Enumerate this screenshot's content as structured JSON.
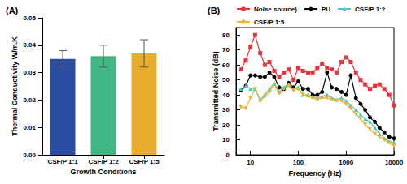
{
  "chart_data": [
    {
      "type": "bar",
      "title": "(A)",
      "x_label": "Growth Conditions",
      "y_label": "Thermal Conductivity W/m.K",
      "categories": [
        "CSF/P 1:1",
        "CSF/P 1:2",
        "CSF/P 1:5"
      ],
      "values": [
        0.035,
        0.036,
        0.037
      ],
      "errors": [
        0.003,
        0.004,
        0.005
      ],
      "colors": [
        "#2b4ea2",
        "#41b883",
        "#e6ad2a"
      ],
      "ylim": [
        0,
        0.05
      ],
      "yticks": [
        {
          "value": 0,
          "label": "0.00"
        },
        {
          "value": 0.01,
          "label": "0.01"
        },
        {
          "value": 0.02,
          "label": "0.02"
        },
        {
          "value": 0.03,
          "label": "0.03"
        },
        {
          "value": 0.04,
          "label": "0.04"
        },
        {
          "value": 0.05,
          "label": "0.05"
        }
      ],
      "grid": false
    },
    {
      "type": "line",
      "title": "(B)",
      "x_label": "Frequency (Hz)",
      "y_label": "Transmitted Noise (dB)",
      "log": "x",
      "x": [
        6.3,
        8,
        10,
        12.5,
        16,
        20,
        25,
        31.5,
        40,
        50,
        63,
        80,
        100,
        125,
        160,
        200,
        250,
        315,
        400,
        500,
        630,
        800,
        1000,
        1250,
        1600,
        2000,
        2500,
        3150,
        4000,
        5000,
        6300,
        8000,
        10000
      ],
      "series": [
        {
          "name": "Noise source)",
          "color": "#e8333a",
          "marker": "square",
          "values": [
            57,
            63,
            72,
            80,
            68,
            60,
            62,
            56,
            52,
            55,
            57,
            50,
            58,
            56,
            55,
            55,
            58,
            61,
            58,
            57,
            55,
            62,
            65,
            62,
            55,
            50,
            47,
            44,
            46,
            47,
            44,
            40,
            33
          ]
        },
        {
          "name": "PU",
          "color": "#000000",
          "marker": "circle",
          "values": [
            43,
            46,
            53,
            53,
            52,
            52,
            55,
            52,
            45,
            44,
            48,
            45,
            49,
            44,
            44,
            40,
            40,
            42,
            55,
            45,
            44,
            42,
            40,
            53,
            38,
            34,
            30,
            25,
            22,
            18,
            15,
            12,
            11
          ]
        },
        {
          "name": "CSF/P 1:2",
          "color": "#4ec9c0",
          "marker": "triangle",
          "values": [
            44,
            46,
            44,
            44,
            37,
            40,
            44,
            48,
            42,
            45,
            47,
            44,
            45,
            40,
            40,
            39,
            38,
            39,
            40,
            38,
            37,
            38,
            36,
            33,
            30,
            27,
            24,
            22,
            18,
            14,
            11,
            9,
            8
          ]
        },
        {
          "name": "CSF/P 1:5",
          "color": "#f0b030",
          "marker": "triangle-down",
          "values": [
            32,
            31,
            38,
            44,
            36,
            39,
            42,
            47,
            41,
            44,
            46,
            43,
            44,
            40,
            39,
            38,
            37,
            38,
            38,
            37,
            36,
            36,
            34,
            31,
            27,
            24,
            20,
            17,
            14,
            12,
            10,
            8,
            6
          ]
        }
      ],
      "xlim": [
        5,
        10000
      ],
      "xticks": [
        10,
        100,
        1000,
        10000
      ],
      "ylim": [
        0,
        85
      ],
      "yticks": [
        0,
        10,
        20,
        30,
        40,
        50,
        60,
        70,
        80
      ],
      "legend": "top",
      "grid": false
    }
  ]
}
